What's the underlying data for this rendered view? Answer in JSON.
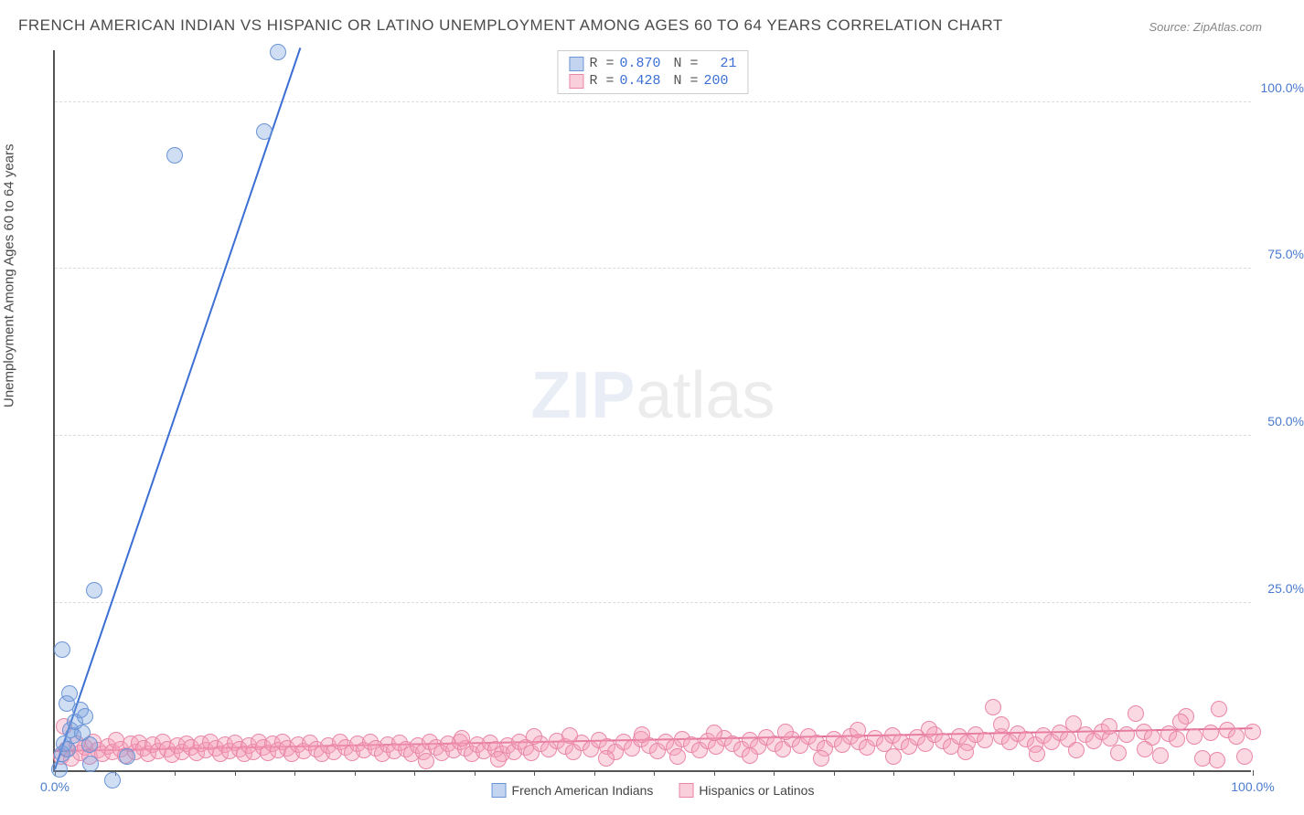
{
  "title": "FRENCH AMERICAN INDIAN VS HISPANIC OR LATINO UNEMPLOYMENT AMONG AGES 60 TO 64 YEARS CORRELATION CHART",
  "source": "Source: ZipAtlas.com",
  "ylabel": "Unemployment Among Ages 60 to 64 years",
  "watermark": {
    "zip": "ZIP",
    "atlas": "atlas"
  },
  "chart": {
    "type": "scatter",
    "xlim": [
      0,
      100
    ],
    "ylim": [
      0,
      108
    ],
    "background_color": "#ffffff",
    "grid_color": "#dddddd",
    "grid_dash": true,
    "yticks": [
      {
        "v": 25,
        "label": "25.0%"
      },
      {
        "v": 50,
        "label": "50.0%"
      },
      {
        "v": 75,
        "label": "75.0%"
      },
      {
        "v": 100,
        "label": "100.0%"
      }
    ],
    "xticks_major": [
      0,
      100
    ],
    "xticks_minor_step": 5,
    "xtick_labels": [
      {
        "v": 0,
        "label": "0.0%"
      },
      {
        "v": 100,
        "label": "100.0%"
      }
    ],
    "tick_label_color": "#4a7bd0",
    "series": [
      {
        "id": "blue",
        "label": "French American Indians",
        "fill": "rgba(120,160,220,0.35)",
        "stroke": "#6b94d6",
        "marker_radius": 9,
        "trend": {
          "x1": 0,
          "y1": 0,
          "x2": 20.5,
          "y2": 108,
          "color": "#3b6fd4",
          "width": 2
        },
        "stats": {
          "R": "0.870",
          "N": "21"
        },
        "points": [
          [
            0.4,
            0.2
          ],
          [
            0.6,
            2.5
          ],
          [
            0.8,
            4.0
          ],
          [
            1.1,
            3.2
          ],
          [
            1.3,
            6.0
          ],
          [
            1.5,
            5.2
          ],
          [
            1.0,
            10.0
          ],
          [
            1.2,
            11.5
          ],
          [
            0.6,
            18.0
          ],
          [
            2.1,
            9.0
          ],
          [
            2.3,
            5.6
          ],
          [
            2.9,
            3.8
          ],
          [
            3.0,
            1.0
          ],
          [
            3.3,
            27.0
          ],
          [
            4.8,
            -1.5
          ],
          [
            6.0,
            2.0
          ],
          [
            10.0,
            92.0
          ],
          [
            17.5,
            95.5
          ],
          [
            18.6,
            107.5
          ],
          [
            1.7,
            7.2
          ],
          [
            2.5,
            8.0
          ]
        ]
      },
      {
        "id": "pink",
        "label": "Hispanics or Latinos",
        "fill": "rgba(244,160,185,0.40)",
        "stroke": "#e986a8",
        "marker_radius": 9,
        "trend": {
          "x1": 0,
          "y1": 2.8,
          "x2": 100,
          "y2": 6.2,
          "color": "#e06a94",
          "width": 2
        },
        "stats": {
          "R": "0.428",
          "N": "200"
        },
        "points": [
          [
            0.5,
            2.0
          ],
          [
            1.0,
            3.1
          ],
          [
            1.4,
            1.8
          ],
          [
            1.8,
            4.0
          ],
          [
            2.1,
            2.6
          ],
          [
            2.5,
            3.4
          ],
          [
            2.9,
            2.0
          ],
          [
            3.2,
            4.2
          ],
          [
            3.6,
            3.0
          ],
          [
            4.0,
            2.4
          ],
          [
            4.4,
            3.6
          ],
          [
            4.8,
            2.8
          ],
          [
            5.1,
            4.5
          ],
          [
            5.5,
            3.2
          ],
          [
            5.9,
            2.2
          ],
          [
            6.3,
            3.9
          ],
          [
            6.7,
            2.7
          ],
          [
            7.0,
            4.1
          ],
          [
            7.4,
            3.3
          ],
          [
            7.8,
            2.5
          ],
          [
            8.2,
            3.8
          ],
          [
            8.6,
            2.9
          ],
          [
            9.0,
            4.3
          ],
          [
            9.4,
            3.1
          ],
          [
            9.8,
            2.3
          ],
          [
            10.2,
            3.7
          ],
          [
            10.6,
            2.8
          ],
          [
            11.0,
            4.0
          ],
          [
            11.4,
            3.4
          ],
          [
            11.8,
            2.6
          ],
          [
            12.2,
            3.9
          ],
          [
            12.6,
            3.0
          ],
          [
            13.0,
            4.2
          ],
          [
            13.4,
            3.3
          ],
          [
            13.8,
            2.5
          ],
          [
            14.2,
            3.8
          ],
          [
            14.6,
            2.9
          ],
          [
            15.0,
            4.1
          ],
          [
            15.4,
            3.2
          ],
          [
            15.8,
            2.4
          ],
          [
            16.2,
            3.7
          ],
          [
            16.6,
            2.8
          ],
          [
            17.0,
            4.3
          ],
          [
            17.4,
            3.4
          ],
          [
            17.8,
            2.6
          ],
          [
            18.2,
            3.9
          ],
          [
            18.6,
            3.0
          ],
          [
            19.0,
            4.2
          ],
          [
            19.4,
            3.3
          ],
          [
            19.8,
            2.5
          ],
          [
            20.3,
            3.8
          ],
          [
            20.8,
            2.9
          ],
          [
            21.3,
            4.1
          ],
          [
            21.8,
            3.2
          ],
          [
            22.3,
            2.4
          ],
          [
            22.8,
            3.7
          ],
          [
            23.3,
            2.8
          ],
          [
            23.8,
            4.3
          ],
          [
            24.3,
            3.4
          ],
          [
            24.8,
            2.6
          ],
          [
            25.3,
            3.9
          ],
          [
            25.8,
            3.0
          ],
          [
            26.3,
            4.2
          ],
          [
            26.8,
            3.3
          ],
          [
            27.3,
            2.5
          ],
          [
            27.8,
            3.8
          ],
          [
            28.3,
            2.9
          ],
          [
            28.8,
            4.1
          ],
          [
            29.3,
            3.2
          ],
          [
            29.8,
            2.4
          ],
          [
            30.3,
            3.7
          ],
          [
            30.8,
            2.8
          ],
          [
            31.3,
            4.3
          ],
          [
            31.8,
            3.4
          ],
          [
            32.3,
            2.6
          ],
          [
            32.8,
            3.9
          ],
          [
            33.3,
            3.0
          ],
          [
            33.8,
            4.2
          ],
          [
            34.3,
            3.3
          ],
          [
            34.8,
            2.5
          ],
          [
            35.3,
            3.8
          ],
          [
            35.8,
            2.9
          ],
          [
            36.3,
            4.1
          ],
          [
            36.8,
            3.2
          ],
          [
            37.3,
            2.4
          ],
          [
            37.8,
            3.7
          ],
          [
            38.3,
            2.8
          ],
          [
            38.8,
            4.3
          ],
          [
            39.3,
            3.4
          ],
          [
            39.8,
            2.6
          ],
          [
            40.5,
            4.0
          ],
          [
            41.2,
            3.1
          ],
          [
            41.9,
            4.4
          ],
          [
            42.6,
            3.5
          ],
          [
            43.3,
            2.7
          ],
          [
            44.0,
            4.1
          ],
          [
            44.7,
            3.2
          ],
          [
            45.4,
            4.5
          ],
          [
            46.1,
            3.6
          ],
          [
            46.8,
            2.8
          ],
          [
            47.5,
            4.2
          ],
          [
            48.2,
            3.3
          ],
          [
            48.9,
            4.6
          ],
          [
            49.6,
            3.7
          ],
          [
            50.3,
            2.9
          ],
          [
            51.0,
            4.3
          ],
          [
            51.7,
            3.4
          ],
          [
            52.4,
            4.7
          ],
          [
            53.1,
            3.8
          ],
          [
            53.8,
            3.0
          ],
          [
            54.5,
            4.4
          ],
          [
            55.2,
            3.5
          ],
          [
            55.9,
            4.8
          ],
          [
            56.6,
            3.9
          ],
          [
            57.3,
            3.1
          ],
          [
            58.0,
            4.5
          ],
          [
            58.7,
            3.6
          ],
          [
            59.4,
            4.9
          ],
          [
            60.1,
            4.0
          ],
          [
            60.8,
            3.2
          ],
          [
            61.5,
            4.6
          ],
          [
            62.2,
            3.7
          ],
          [
            62.9,
            5.0
          ],
          [
            63.6,
            4.1
          ],
          [
            64.3,
            3.3
          ],
          [
            65.0,
            4.7
          ],
          [
            65.7,
            3.8
          ],
          [
            66.4,
            5.1
          ],
          [
            67.1,
            4.2
          ],
          [
            67.8,
            3.4
          ],
          [
            68.5,
            4.8
          ],
          [
            69.2,
            3.9
          ],
          [
            69.9,
            5.2
          ],
          [
            70.6,
            4.3
          ],
          [
            71.3,
            3.5
          ],
          [
            72.0,
            4.9
          ],
          [
            72.7,
            4.0
          ],
          [
            73.4,
            5.3
          ],
          [
            74.1,
            4.4
          ],
          [
            74.8,
            3.6
          ],
          [
            75.5,
            5.0
          ],
          [
            76.2,
            4.1
          ],
          [
            76.9,
            5.4
          ],
          [
            77.6,
            4.5
          ],
          [
            78.3,
            9.5
          ],
          [
            79.0,
            5.1
          ],
          [
            79.7,
            4.2
          ],
          [
            80.4,
            5.5
          ],
          [
            81.1,
            4.6
          ],
          [
            81.8,
            3.8
          ],
          [
            82.5,
            5.2
          ],
          [
            83.2,
            4.3
          ],
          [
            83.9,
            5.6
          ],
          [
            84.6,
            4.7
          ],
          [
            85.3,
            3.0
          ],
          [
            86.0,
            5.3
          ],
          [
            86.7,
            4.4
          ],
          [
            87.4,
            5.7
          ],
          [
            88.1,
            4.8
          ],
          [
            88.8,
            2.6
          ],
          [
            89.5,
            5.4
          ],
          [
            90.2,
            8.5
          ],
          [
            90.9,
            5.8
          ],
          [
            91.6,
            4.9
          ],
          [
            92.3,
            2.2
          ],
          [
            93.0,
            5.5
          ],
          [
            93.7,
            4.6
          ],
          [
            94.4,
            8.0
          ],
          [
            95.1,
            5.0
          ],
          [
            95.8,
            1.8
          ],
          [
            96.5,
            5.6
          ],
          [
            97.2,
            9.2
          ],
          [
            97.9,
            6.0
          ],
          [
            98.6,
            5.1
          ],
          [
            99.3,
            2.0
          ],
          [
            100.0,
            5.7
          ],
          [
            97.0,
            1.5
          ],
          [
            94.0,
            7.2
          ],
          [
            91.0,
            3.2
          ],
          [
            88.0,
            6.5
          ],
          [
            85.0,
            7.0
          ],
          [
            82.0,
            2.4
          ],
          [
            79.0,
            6.8
          ],
          [
            76.0,
            2.8
          ],
          [
            73.0,
            6.2
          ],
          [
            70.0,
            2.0
          ],
          [
            67.0,
            6.0
          ],
          [
            64.0,
            1.8
          ],
          [
            61.0,
            5.8
          ],
          [
            58.0,
            2.2
          ],
          [
            55.0,
            5.6
          ],
          [
            52.0,
            2.0
          ],
          [
            49.0,
            5.4
          ],
          [
            46.0,
            1.8
          ],
          [
            43.0,
            5.2
          ],
          [
            40.0,
            5.0
          ],
          [
            37.0,
            1.6
          ],
          [
            34.0,
            4.8
          ],
          [
            31.0,
            1.4
          ],
          [
            0.8,
            6.5
          ]
        ]
      }
    ]
  },
  "legend_top": {
    "rows": [
      {
        "swatch_fill": "rgba(120,160,220,0.45)",
        "swatch_stroke": "#6b94d6",
        "r_label": "R =",
        "r_val": "0.870",
        "n_label": "N =",
        "n_val": "  21"
      },
      {
        "swatch_fill": "rgba(244,160,185,0.50)",
        "swatch_stroke": "#e986a8",
        "r_label": "R =",
        "r_val": "0.428",
        "n_label": "N =",
        "n_val": "200"
      }
    ],
    "value_color": "#3b6fd4",
    "label_color": "#555"
  },
  "legend_bottom": {
    "items": [
      {
        "swatch_fill": "rgba(120,160,220,0.45)",
        "swatch_stroke": "#6b94d6",
        "label": "French American Indians"
      },
      {
        "swatch_fill": "rgba(244,160,185,0.50)",
        "swatch_stroke": "#e986a8",
        "label": "Hispanics or Latinos"
      }
    ]
  }
}
